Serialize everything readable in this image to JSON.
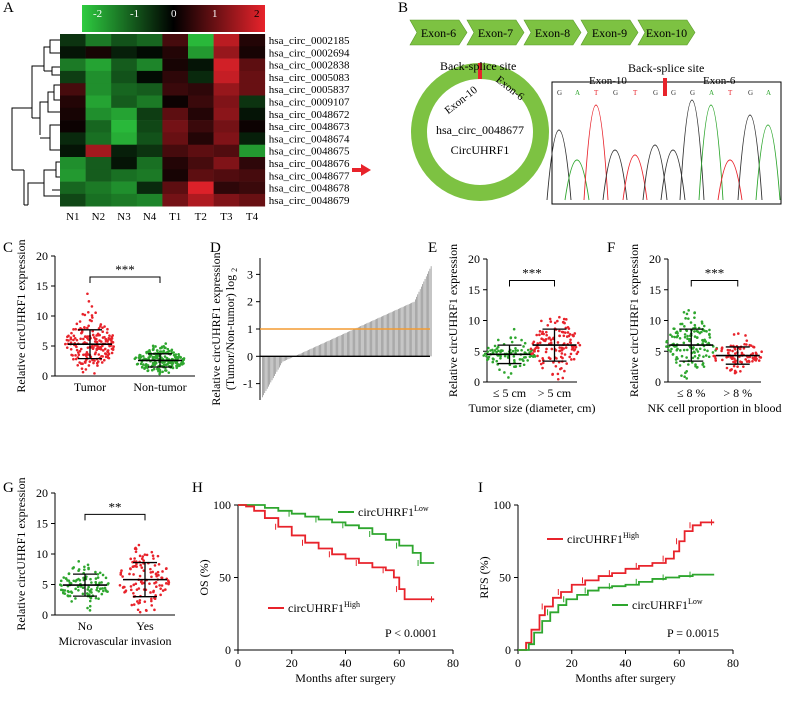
{
  "panels": {
    "A": {
      "letter": "A",
      "colorbar": {
        "ticks": [
          "-2",
          "-1",
          "0",
          "1",
          "2"
        ],
        "colors": [
          "#2ecc40",
          "#000000",
          "#e8232b"
        ]
      },
      "genes": [
        "hsa_circ_0002185",
        "hsa_circ_0002694",
        "hsa_circ_0002838",
        "hsa_circ_0005083",
        "hsa_circ_0005837",
        "hsa_circ_0009107",
        "hsa_circ_0048672",
        "hsa_circ_0048673",
        "hsa_circ_0048674",
        "hsa_circ_0048675",
        "hsa_circ_0048676",
        "hsa_circ_0048677",
        "hsa_circ_0048678",
        "hsa_circ_0048679"
      ],
      "samples": [
        "N1",
        "N2",
        "N3",
        "N4",
        "T1",
        "T2",
        "T3",
        "T4"
      ],
      "highlight_row": 11,
      "values": [
        [
          -0.5,
          -1.2,
          -0.8,
          -1.0,
          0.6,
          -1.8,
          1.6,
          0.3
        ],
        [
          -0.2,
          0.2,
          -0.3,
          -0.1,
          0.3,
          -1.5,
          1.3,
          0.2
        ],
        [
          -1.2,
          -1.6,
          -0.9,
          -1.3,
          0.2,
          -0.2,
          1.8,
          0.8
        ],
        [
          -0.6,
          -1.4,
          -0.8,
          -0.1,
          0.4,
          -0.4,
          1.7,
          0.9
        ],
        [
          0.6,
          -1.4,
          -1.0,
          -0.9,
          0.5,
          0.4,
          1.3,
          0.9
        ],
        [
          0.3,
          -1.6,
          -0.9,
          -1.2,
          0.1,
          0.5,
          1.1,
          -0.5
        ],
        [
          0.2,
          -1.4,
          -1.6,
          -0.6,
          0.8,
          0.3,
          1.2,
          -0.2
        ],
        [
          0.1,
          -1.0,
          -1.8,
          -0.7,
          1.0,
          0.5,
          1.0,
          0.1
        ],
        [
          -0.4,
          -1.1,
          -1.7,
          -0.8,
          0.9,
          0.3,
          1.1,
          -0.3
        ],
        [
          -0.2,
          1.4,
          -0.3,
          -0.5,
          0.6,
          0.8,
          0.7,
          -1.5
        ],
        [
          -1.4,
          -0.9,
          -0.2,
          -1.1,
          0.3,
          0.6,
          1.1,
          0.4
        ],
        [
          -1.5,
          -0.9,
          -1.1,
          -1.2,
          0.2,
          0.8,
          0.7,
          0.6
        ],
        [
          -1.0,
          -1.2,
          -1.4,
          -0.4,
          0.8,
          1.9,
          0.4,
          0.5
        ],
        [
          -0.7,
          -1.1,
          -1.2,
          -1.3,
          1.0,
          1.5,
          1.1,
          0.9
        ]
      ]
    },
    "B": {
      "letter": "B",
      "exons": [
        "Exon-6",
        "Exon-7",
        "Exon-8",
        "Exon-9",
        "Exon-10"
      ],
      "exon_color": "#7dc242",
      "backsplice_label": "Back-splice site",
      "ring_exon_left": "Exon-10",
      "ring_exon_right": "Exon-6",
      "circ_name": "hsa_circ_0048677",
      "circ_alias": "CircUHRF1",
      "chrom_backsplice_label": "Back-splice site",
      "chrom_exon_left": "Exon-10",
      "chrom_exon_right": "Exon-6",
      "bases": [
        "G",
        "A",
        "T",
        "G",
        "T",
        "G",
        "G",
        "G",
        "A",
        "T",
        "G",
        "A"
      ]
    },
    "C": {
      "letter": "C",
      "ylabel": "Relative circUHRF1 expression",
      "yticks": [
        "0",
        "5",
        "10",
        "15",
        "20"
      ],
      "ylim": [
        0,
        20
      ],
      "groups": [
        {
          "name": "Tumor",
          "mean": 5.3,
          "sd": 2.4,
          "n": 200,
          "color": "#e8232b"
        },
        {
          "name": "Non-tumor",
          "mean": 2.6,
          "sd": 1.1,
          "n": 200,
          "color": "#2ea62e"
        }
      ],
      "signif": "***"
    },
    "D": {
      "letter": "D",
      "ylabel1": "Relative circUHRF1 expression",
      "ylabel2": "(Tumor/Non-tumor) log",
      "ylabel_sub": "2",
      "yticks": [
        "-1",
        "0",
        "1",
        "2",
        "3"
      ],
      "ylim": [
        -1.6,
        3.6
      ],
      "threshold": 1,
      "threshold_color": "#f39c32"
    },
    "E": {
      "letter": "E",
      "ylabel": "Relative circUHRF1 expression",
      "yticks": [
        "0",
        "5",
        "10",
        "15",
        "20"
      ],
      "ylim": [
        0,
        20
      ],
      "groups": [
        {
          "name": "≤ 5 cm",
          "mean": 4.5,
          "sd": 1.5,
          "n": 90,
          "color": "#2ea62e"
        },
        {
          "name": "> 5 cm",
          "mean": 6.0,
          "sd": 2.6,
          "n": 130,
          "color": "#e8232b"
        }
      ],
      "signif": "***",
      "xlabel": "Tumor size (diameter, cm)"
    },
    "F": {
      "letter": "F",
      "ylabel": "Relative circUHRF1 expression",
      "yticks": [
        "0",
        "5",
        "10",
        "15",
        "20"
      ],
      "ylim": [
        0,
        20
      ],
      "groups": [
        {
          "name": "≤ 8 %",
          "mean": 6.0,
          "sd": 2.6,
          "n": 140,
          "color": "#2ea62e"
        },
        {
          "name": "> 8 %",
          "mean": 4.3,
          "sd": 1.4,
          "n": 90,
          "color": "#e8232b"
        }
      ],
      "signif": "***",
      "xlabel": "NK cell proportion in blood"
    },
    "G": {
      "letter": "G",
      "ylabel": "Relative circUHRF1 expression",
      "yticks": [
        "0",
        "5",
        "10",
        "15",
        "20"
      ],
      "ylim": [
        0,
        20
      ],
      "groups": [
        {
          "name": "No",
          "mean": 4.9,
          "sd": 1.8,
          "n": 110,
          "color": "#2ea62e"
        },
        {
          "name": "Yes",
          "mean": 5.8,
          "sd": 2.8,
          "n": 120,
          "color": "#e8232b"
        }
      ],
      "signif": "**",
      "xlabel": "Microvascular invasion"
    },
    "H": {
      "letter": "H",
      "ylabel": "OS (%)",
      "xlabel": "Months after surgery",
      "xticks": [
        "0",
        "20",
        "40",
        "60",
        "80"
      ],
      "yticks": [
        "0",
        "50",
        "100"
      ],
      "low_label": "circUHRF1",
      "low_sup": "Low",
      "high_label": "circUHRF1",
      "high_sup": "High",
      "pvalue": "P < 0.0001",
      "low_curve": [
        [
          0,
          100
        ],
        [
          5,
          100
        ],
        [
          10,
          98
        ],
        [
          15,
          96
        ],
        [
          20,
          94
        ],
        [
          25,
          92
        ],
        [
          30,
          90
        ],
        [
          35,
          88
        ],
        [
          40,
          86
        ],
        [
          45,
          84
        ],
        [
          50,
          80
        ],
        [
          55,
          76
        ],
        [
          60,
          72
        ],
        [
          65,
          67
        ],
        [
          68,
          60
        ],
        [
          73,
          60
        ]
      ],
      "high_curve": [
        [
          0,
          100
        ],
        [
          3,
          99
        ],
        [
          6,
          96
        ],
        [
          10,
          91
        ],
        [
          15,
          85
        ],
        [
          20,
          79
        ],
        [
          25,
          74
        ],
        [
          30,
          70
        ],
        [
          35,
          66
        ],
        [
          40,
          63
        ],
        [
          45,
          60
        ],
        [
          50,
          57
        ],
        [
          55,
          55
        ],
        [
          58,
          50
        ],
        [
          60,
          42
        ],
        [
          62,
          35
        ],
        [
          73,
          35
        ]
      ]
    },
    "I": {
      "letter": "I",
      "ylabel": "RFS (%)",
      "xlabel": "Months after surgery",
      "xticks": [
        "0",
        "20",
        "40",
        "60",
        "80"
      ],
      "yticks": [
        "0",
        "50",
        "100"
      ],
      "high_label": "circUHRF1",
      "high_sup": "High",
      "low_label": "circUHRF1",
      "low_sup": "Low",
      "pvalue": "P = 0.0015",
      "high_curve": [
        [
          0,
          0
        ],
        [
          3,
          5
        ],
        [
          5,
          14
        ],
        [
          8,
          24
        ],
        [
          10,
          30
        ],
        [
          13,
          36
        ],
        [
          16,
          40
        ],
        [
          20,
          45
        ],
        [
          25,
          48
        ],
        [
          30,
          51
        ],
        [
          35,
          53
        ],
        [
          40,
          56
        ],
        [
          45,
          58
        ],
        [
          50,
          60
        ],
        [
          55,
          63
        ],
        [
          58,
          68
        ],
        [
          60,
          75
        ],
        [
          62,
          82
        ],
        [
          65,
          86
        ],
        [
          68,
          88
        ],
        [
          73,
          88
        ]
      ],
      "low_curve": [
        [
          0,
          0
        ],
        [
          4,
          4
        ],
        [
          6,
          12
        ],
        [
          9,
          20
        ],
        [
          12,
          26
        ],
        [
          15,
          31
        ],
        [
          18,
          35
        ],
        [
          22,
          38
        ],
        [
          26,
          41
        ],
        [
          30,
          43
        ],
        [
          35,
          44
        ],
        [
          40,
          45
        ],
        [
          45,
          47
        ],
        [
          50,
          49
        ],
        [
          55,
          50
        ],
        [
          60,
          51
        ],
        [
          65,
          52
        ],
        [
          73,
          52
        ]
      ]
    }
  },
  "colors": {
    "red": "#e8232b",
    "green": "#2ea62e",
    "lightgreen": "#7dc242",
    "orange": "#f39c32",
    "grey": "#808080"
  }
}
